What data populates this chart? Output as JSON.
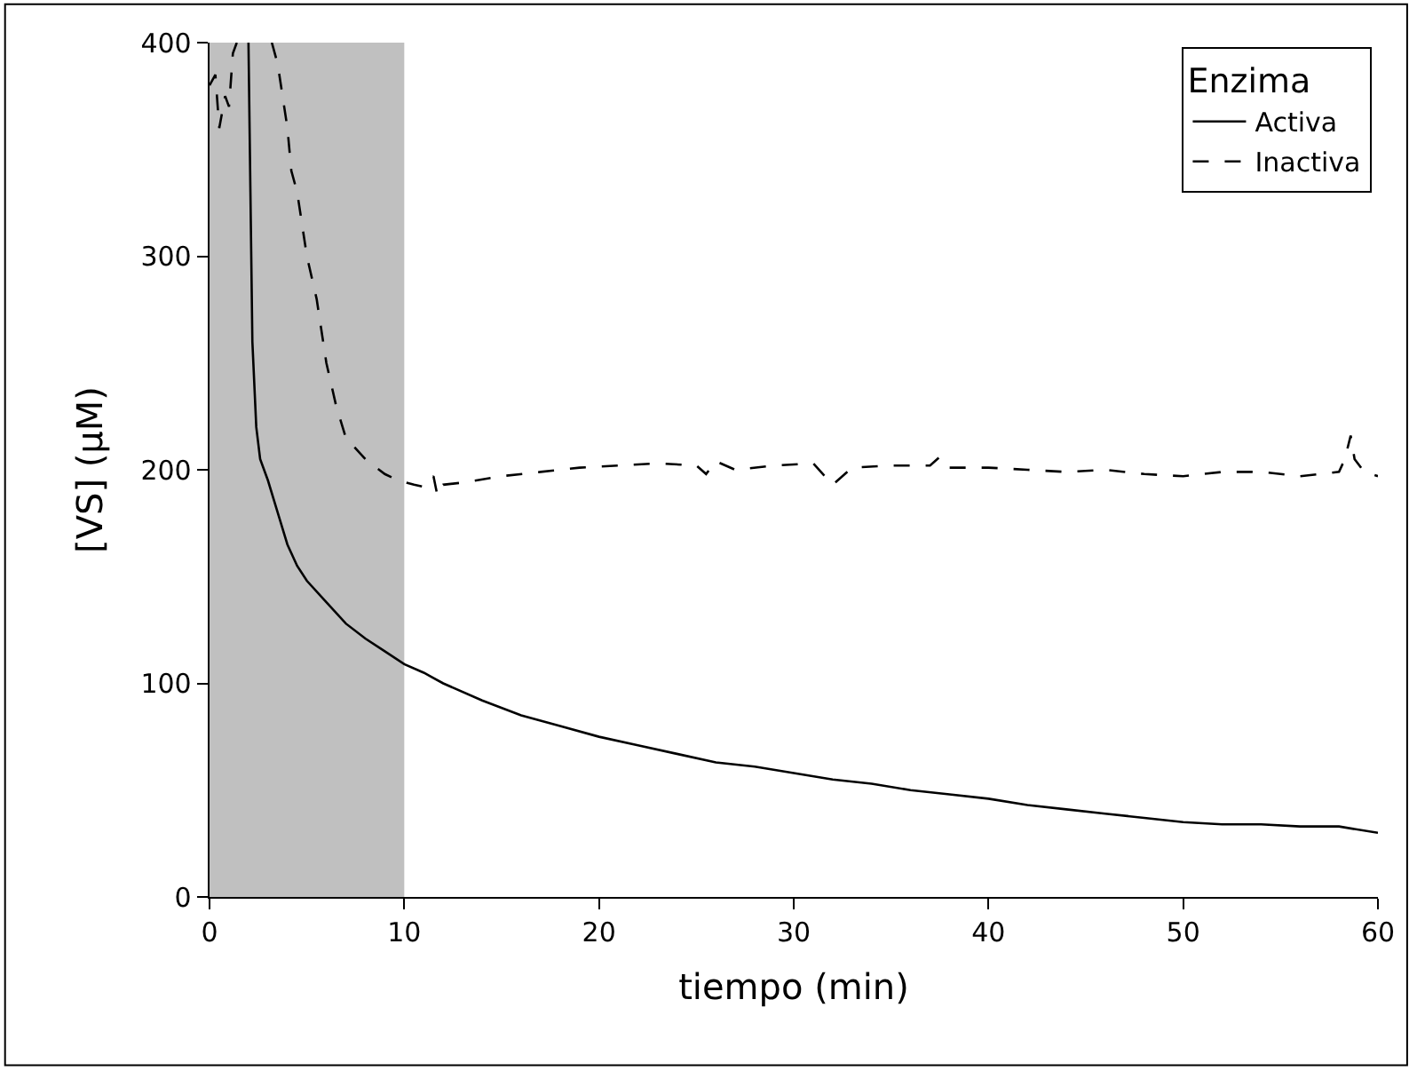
{
  "chart_data": {
    "type": "line",
    "xlabel": "tiempo (min)",
    "ylabel": "[VS] (µM)",
    "legend_title": "Enzima",
    "legend": "top right",
    "grid": false,
    "xlim": [
      0,
      60
    ],
    "ylim": [
      0,
      400
    ],
    "xticks": [
      0,
      10,
      20,
      30,
      40,
      50,
      60
    ],
    "yticks": [
      0,
      100,
      200,
      300,
      400
    ],
    "bands": [
      {
        "axis": "x",
        "from": 0,
        "to": 10,
        "color": "#c0c0c0"
      }
    ],
    "series": [
      {
        "name": "Activa",
        "color": "#000000",
        "line_style": "solid",
        "x": [
          2.0,
          2.1,
          2.2,
          2.4,
          2.6,
          3,
          3.5,
          4,
          4.5,
          5,
          6,
          7,
          8,
          9,
          10,
          11,
          12,
          14,
          16,
          18,
          20,
          22,
          24,
          26,
          28,
          30,
          32,
          34,
          36,
          38,
          40,
          42,
          44,
          46,
          48,
          50,
          52,
          54,
          56,
          58,
          60
        ],
        "values": [
          400,
          330,
          260,
          220,
          205,
          195,
          180,
          165,
          155,
          148,
          138,
          128,
          121,
          115,
          109,
          105,
          100,
          92,
          85,
          80,
          75,
          71,
          67,
          63,
          61,
          58,
          55,
          53,
          50,
          48,
          46,
          43,
          41,
          39,
          37,
          35,
          34,
          34,
          33,
          33,
          30
        ]
      },
      {
        "name": "Inactiva",
        "color": "#000000",
        "line_style": "dashed",
        "x": [
          0,
          0.3,
          0.5,
          0.8,
          1,
          1.2,
          1.4,
          2.3,
          3.2,
          3.5,
          4,
          4.2,
          4.5,
          5,
          5.5,
          6,
          6.5,
          7,
          8,
          9,
          9.7,
          10.5,
          11,
          11.5,
          11.7,
          12,
          13,
          15,
          17,
          19,
          21,
          23,
          25,
          25.5,
          26,
          27,
          29,
          31,
          31.5,
          32,
          33,
          35,
          37,
          37.5,
          38,
          40,
          42,
          44,
          46,
          48,
          50,
          52,
          54,
          56,
          58,
          58.3,
          58.6,
          58.8,
          59.3,
          60
        ],
        "values": [
          380,
          385,
          360,
          375,
          370,
          395,
          400,
          null,
          400,
          390,
          360,
          340,
          330,
          300,
          280,
          250,
          230,
          215,
          205,
          198,
          195,
          193,
          192,
          197,
          188,
          193,
          194,
          197,
          199,
          201,
          202,
          203,
          202,
          198,
          204,
          200,
          202,
          203,
          198,
          193,
          201,
          202,
          202,
          206,
          201,
          201,
          200,
          199,
          200,
          198,
          197,
          199,
          199,
          197,
          199,
          205,
          216,
          205,
          199,
          197
        ]
      }
    ]
  }
}
